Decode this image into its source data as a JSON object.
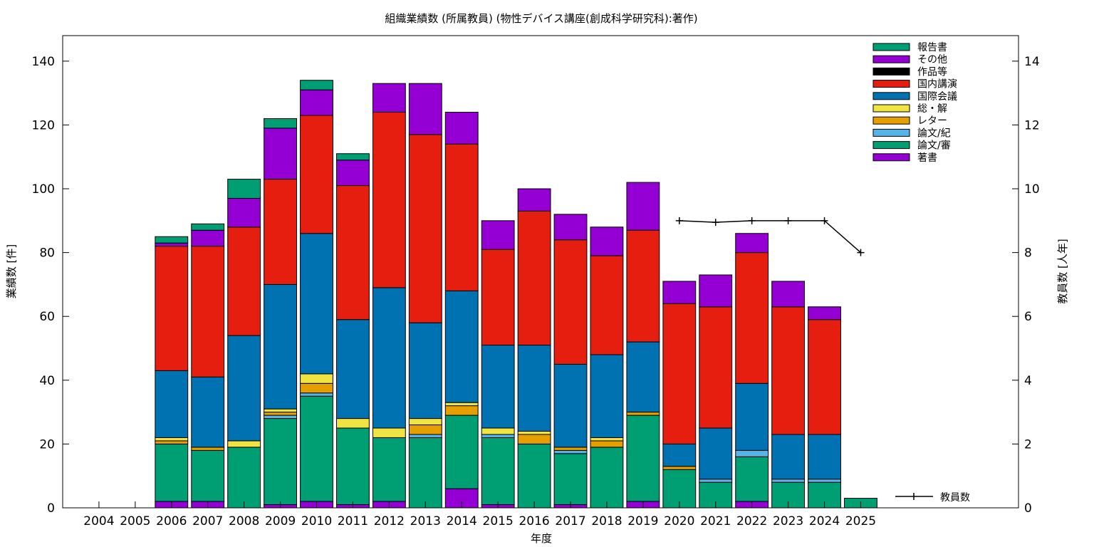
{
  "chart_data": {
    "type": "bar",
    "stacked": true,
    "title": "組織業績数 (所属教員) (物性デバイス講座(創成科学研究科):著作)",
    "xlabel": "年度",
    "ylabel": "業績数 [件]",
    "y2label": "教員数 [人年]",
    "ylim": [
      0,
      148
    ],
    "y2lim": [
      0,
      14.8
    ],
    "yticks": [
      0,
      20,
      40,
      60,
      80,
      100,
      120,
      140
    ],
    "y2ticks": [
      0,
      2,
      4,
      6,
      8,
      10,
      12,
      14
    ],
    "categories": [
      "2004",
      "2005",
      "2006",
      "2007",
      "2008",
      "2009",
      "2010",
      "2011",
      "2012",
      "2013",
      "2014",
      "2015",
      "2016",
      "2017",
      "2018",
      "2019",
      "2020",
      "2021",
      "2022",
      "2023",
      "2024",
      "2025"
    ],
    "legend_position": "top-right",
    "series": [
      {
        "name": "著書",
        "color": "#9400d3",
        "values": [
          0,
          0,
          2,
          2,
          0,
          1,
          2,
          1,
          2,
          0,
          6,
          1,
          0,
          1,
          0,
          2,
          0,
          0,
          2,
          0,
          0,
          0
        ]
      },
      {
        "name": "論文/審",
        "color": "#009e73",
        "values": [
          0,
          0,
          18,
          16,
          19,
          27,
          33,
          24,
          20,
          22,
          23,
          21,
          20,
          16,
          19,
          27,
          12,
          8,
          14,
          8,
          8,
          3
        ]
      },
      {
        "name": "論文/紀",
        "color": "#56b4e9",
        "values": [
          0,
          0,
          0,
          0,
          0,
          1,
          1,
          0,
          0,
          1,
          0,
          1,
          0,
          1,
          0,
          0,
          0,
          1,
          2,
          1,
          1,
          0
        ]
      },
      {
        "name": "レター",
        "color": "#e69f00",
        "values": [
          0,
          0,
          1,
          1,
          0,
          1,
          3,
          0,
          0,
          3,
          3,
          0,
          3,
          1,
          2,
          1,
          1,
          0,
          0,
          0,
          0,
          0
        ]
      },
      {
        "name": "総・解",
        "color": "#f0e442",
        "values": [
          0,
          0,
          1,
          0,
          2,
          1,
          3,
          3,
          3,
          2,
          1,
          2,
          1,
          0,
          1,
          0,
          0,
          0,
          0,
          0,
          0,
          0
        ]
      },
      {
        "name": "国際会議",
        "color": "#0072b2",
        "values": [
          0,
          0,
          21,
          22,
          33,
          39,
          44,
          31,
          44,
          30,
          35,
          26,
          27,
          26,
          26,
          22,
          7,
          16,
          21,
          14,
          14,
          0
        ]
      },
      {
        "name": "国内講演",
        "color": "#e51e10",
        "values": [
          0,
          0,
          39,
          41,
          34,
          33,
          37,
          42,
          55,
          59,
          46,
          30,
          42,
          39,
          31,
          35,
          44,
          38,
          41,
          40,
          36,
          0
        ]
      },
      {
        "name": "作品等",
        "color": "#000000",
        "values": [
          0,
          0,
          0,
          0,
          0,
          0,
          0,
          0,
          0,
          0,
          0,
          0,
          0,
          0,
          0,
          0,
          0,
          0,
          0,
          0,
          0,
          0
        ]
      },
      {
        "name": "その他",
        "color": "#9400d3",
        "values": [
          0,
          0,
          1,
          5,
          9,
          16,
          8,
          8,
          9,
          16,
          10,
          9,
          7,
          8,
          9,
          15,
          7,
          10,
          6,
          8,
          4,
          0
        ]
      },
      {
        "name": "報告書",
        "color": "#009e73",
        "values": [
          0,
          0,
          2,
          2,
          6,
          3,
          3,
          2,
          0,
          0,
          0,
          0,
          0,
          0,
          0,
          0,
          0,
          0,
          0,
          0,
          0,
          0
        ]
      }
    ],
    "line": {
      "name": "教員数",
      "axis": "right",
      "color": "#000000",
      "x": [
        "2020",
        "2021",
        "2022",
        "2023",
        "2024",
        "2025"
      ],
      "values": [
        9,
        8.95,
        9,
        9,
        9,
        8
      ]
    }
  }
}
